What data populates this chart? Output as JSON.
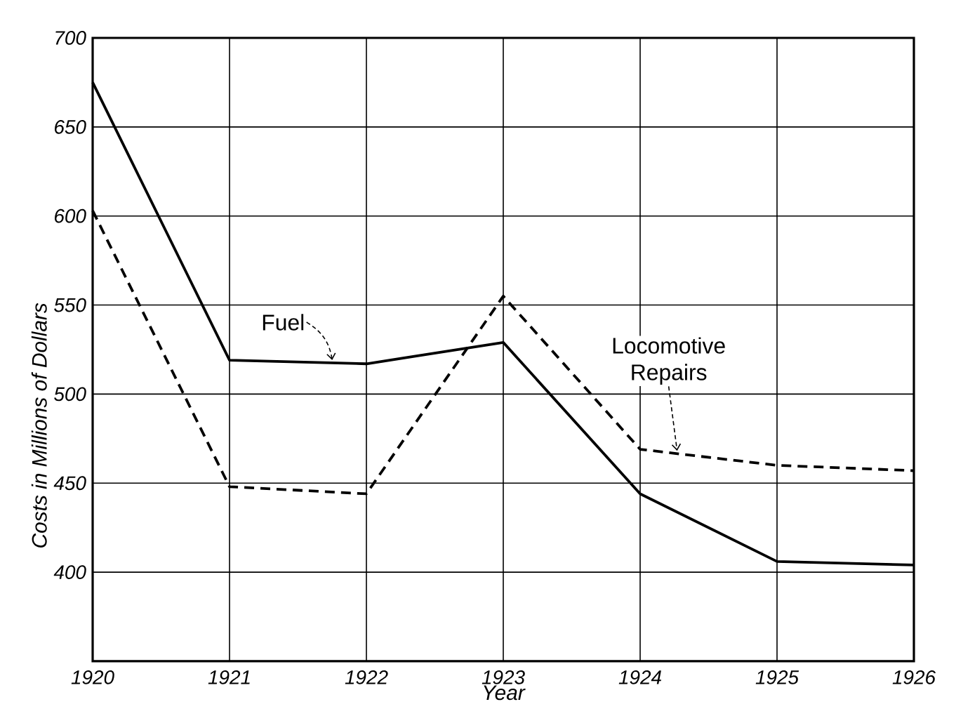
{
  "chart_data": {
    "type": "line",
    "xlabel": "Year",
    "ylabel": "Costs in Millions of Dollars",
    "x": [
      1920,
      1921,
      1922,
      1923,
      1924,
      1925,
      1926
    ],
    "xlim": [
      1920,
      1926
    ],
    "xticks": [
      1920,
      1921,
      1922,
      1923,
      1924,
      1925,
      1926
    ],
    "ylim": [
      350,
      700
    ],
    "yticks": [
      400,
      450,
      500,
      550,
      600,
      650,
      700
    ],
    "grid": true,
    "series": [
      {
        "name": "Fuel",
        "color": "#000000",
        "line_style": "solid",
        "values": [
          675,
          519,
          517,
          529,
          444,
          406,
          404
        ]
      },
      {
        "name": "Locomotive Repairs",
        "color": "#000000",
        "line_style": "dashed",
        "values": [
          603,
          448,
          444,
          555,
          469,
          460,
          457
        ]
      }
    ]
  }
}
